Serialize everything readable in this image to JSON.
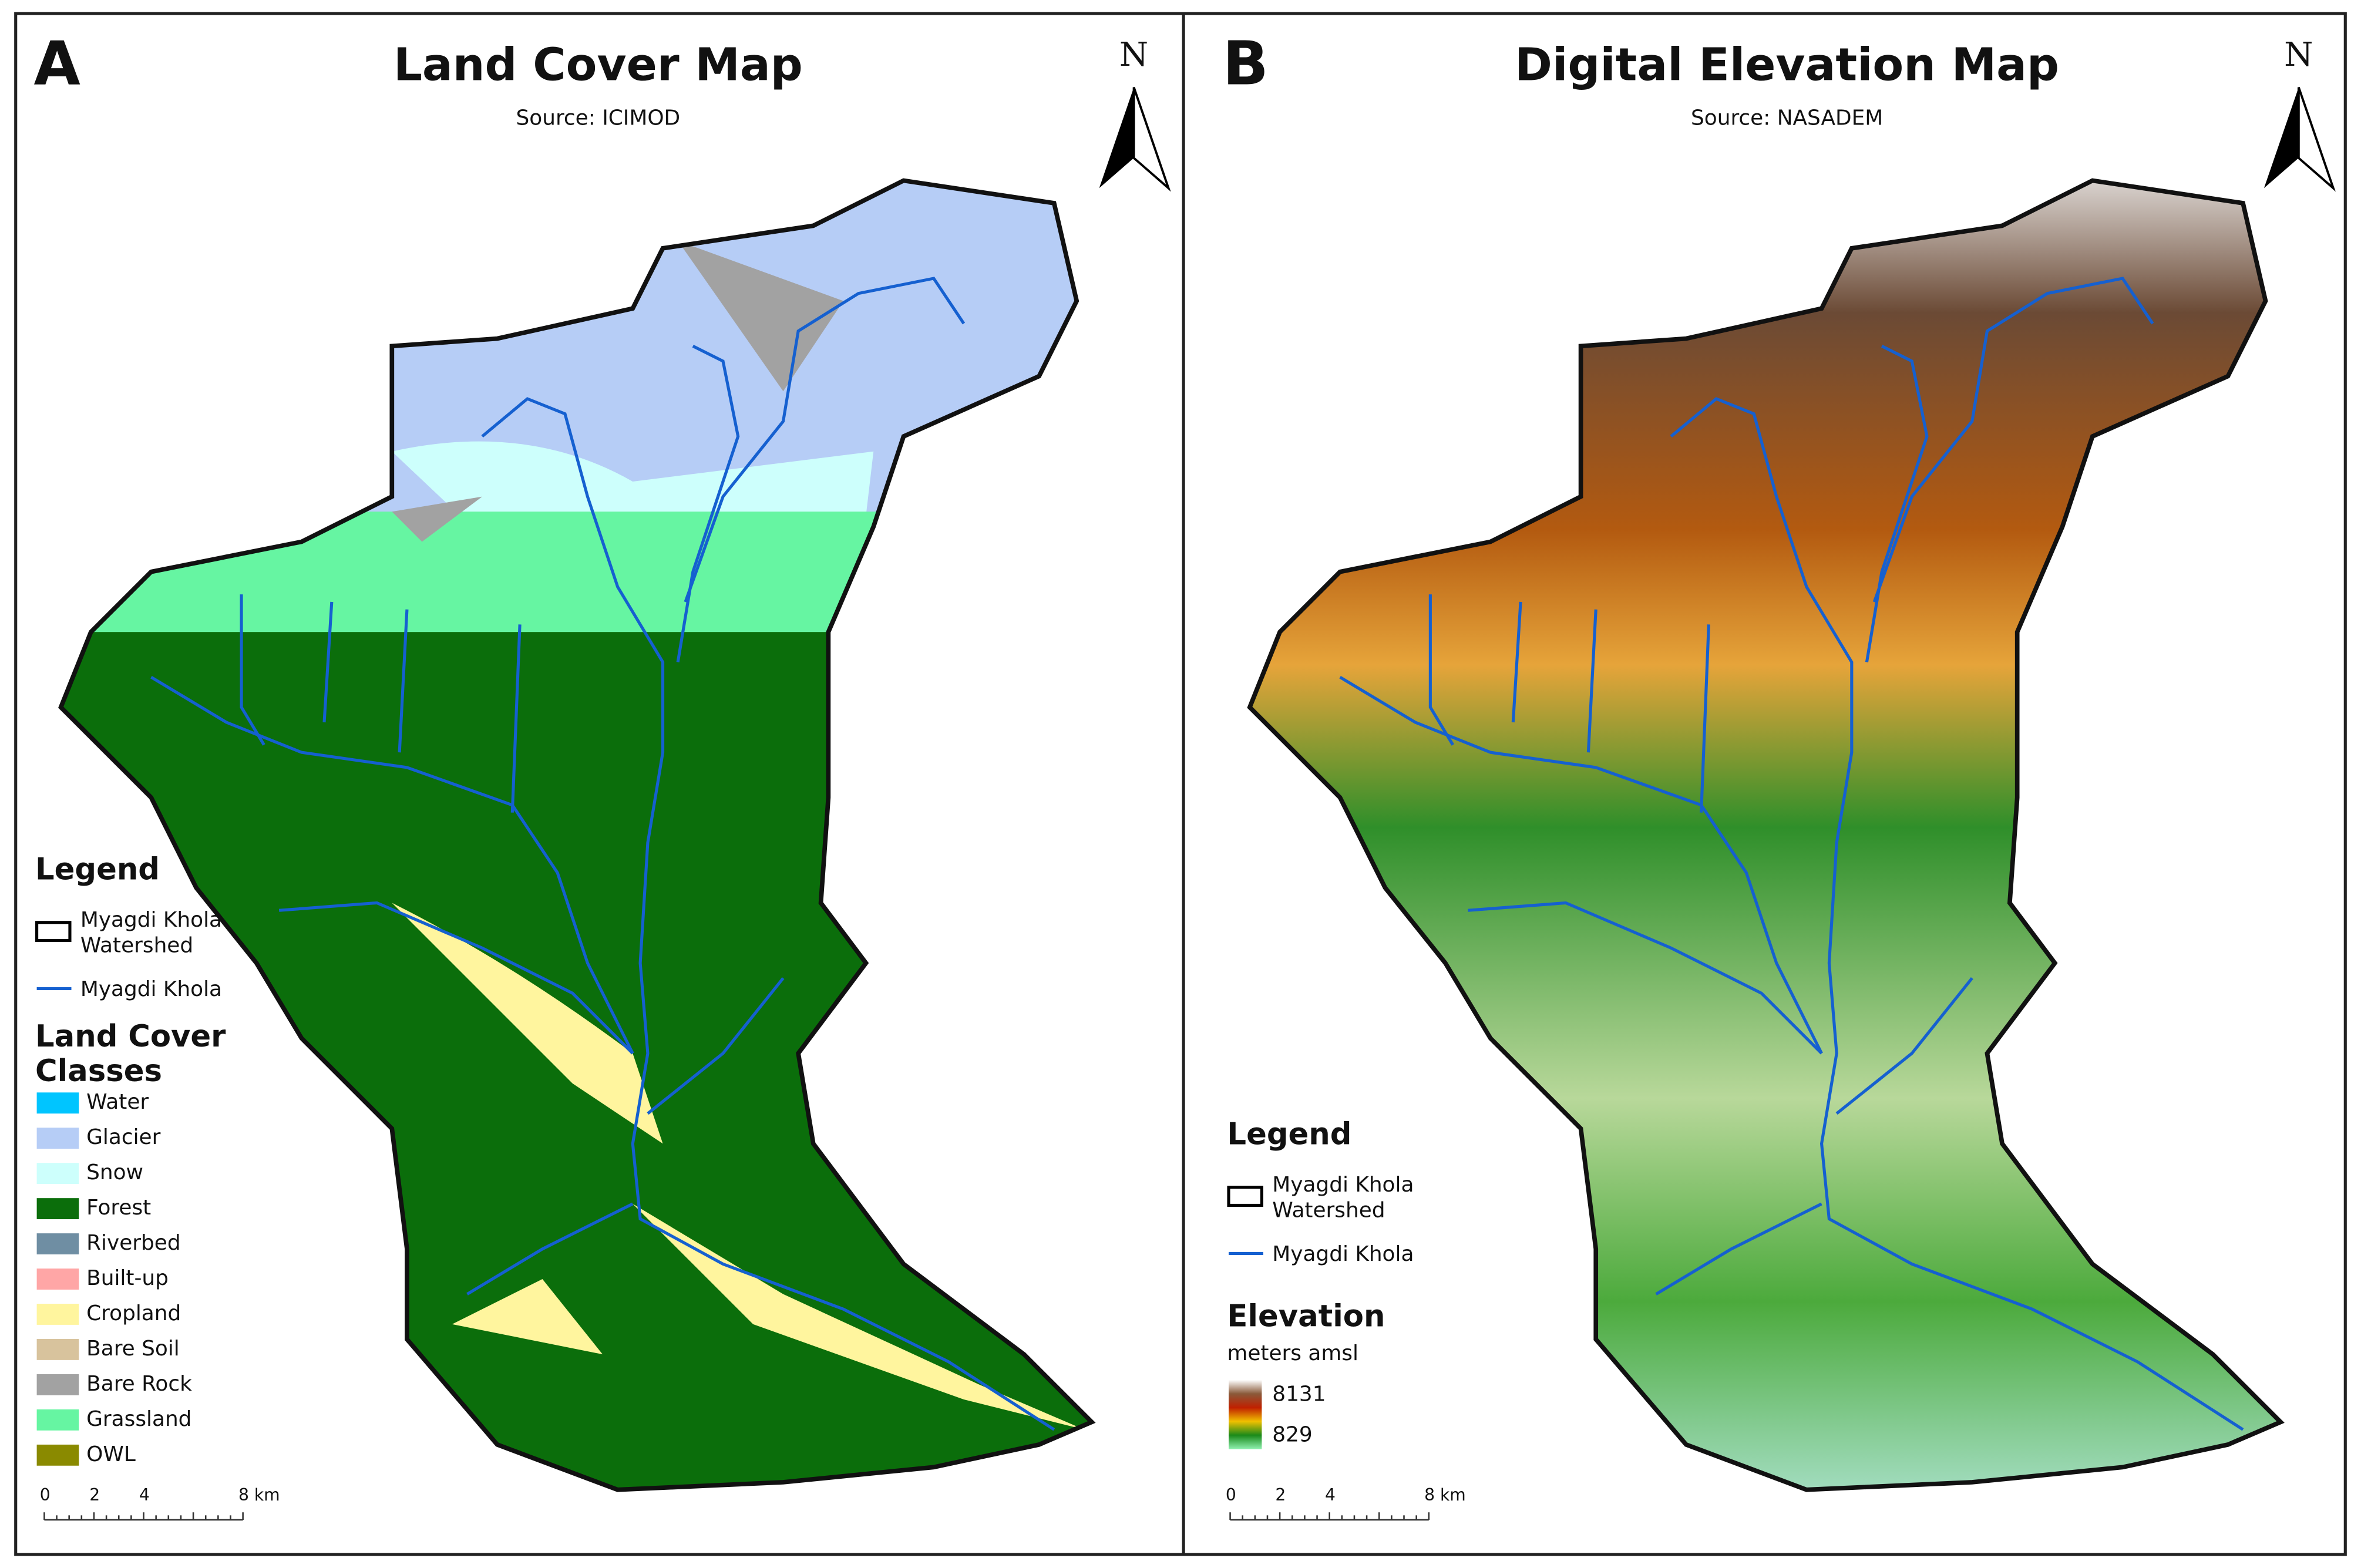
{
  "panels": [
    {
      "letter": "A",
      "title": "Land Cover Map",
      "source": "Source: ICIMOD",
      "north": "N",
      "legend": {
        "title": "Legend",
        "watershed": [
          "Myagdi Khola",
          "Watershed"
        ],
        "river": "Myagdi Khola",
        "classes_title": [
          "Land Cover",
          "Classes"
        ],
        "classes": [
          {
            "name": "Water",
            "color": "#00c5ff"
          },
          {
            "name": "Glacier",
            "color": "#b6cdf6"
          },
          {
            "name": "Snow",
            "color": "#cdfffc"
          },
          {
            "name": "Forest",
            "color": "#0b6e0b"
          },
          {
            "name": "Riverbed",
            "color": "#6f8ea3"
          },
          {
            "name": "Built-up",
            "color": "#ffa6a6"
          },
          {
            "name": "Cropland",
            "color": "#fff59e"
          },
          {
            "name": "Bare Soil",
            "color": "#d8c39d"
          },
          {
            "name": "Bare Rock",
            "color": "#a2a2a2"
          },
          {
            "name": "Grassland",
            "color": "#66f5a2"
          },
          {
            "name": "OWL",
            "color": "#8a8a00"
          }
        ]
      },
      "scale": [
        "0",
        "2",
        "4",
        "8 km"
      ]
    },
    {
      "letter": "B",
      "title": "Digital Elevation Map",
      "source": "Source: NASADEM",
      "north": "N",
      "legend": {
        "title": "Legend",
        "watershed": [
          "Myagdi Khola",
          "Watershed"
        ],
        "river": "Myagdi Khola",
        "elevation_title": "Elevation",
        "elevation_unit": "meters amsl",
        "elevation_max": "8131",
        "elevation_min": "829"
      },
      "scale": [
        "0",
        "2",
        "4",
        "8 km"
      ]
    }
  ]
}
